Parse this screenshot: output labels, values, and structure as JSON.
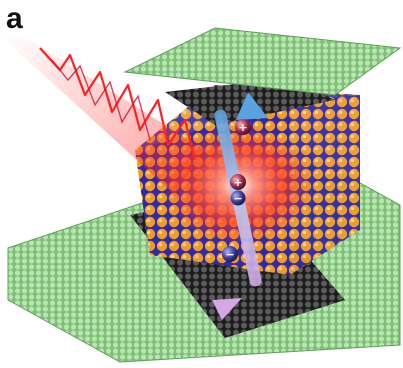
{
  "panel_label": "a",
  "colors": {
    "graphene": "#9fd39a",
    "graphene_edge": "#5f9d5a",
    "dark_layer": "#2a2a2a",
    "crystal_orange": "#e8861e",
    "crystal_blue": "#3b35c9",
    "laser_red": "#ff2a2a",
    "arrow_blue": "#6fa6d8",
    "arrow_pink": "#c9a3e0"
  },
  "charges": {
    "top_hole": "+",
    "center_top": "+",
    "center_bottom": "−",
    "bottom_electron": "−"
  }
}
